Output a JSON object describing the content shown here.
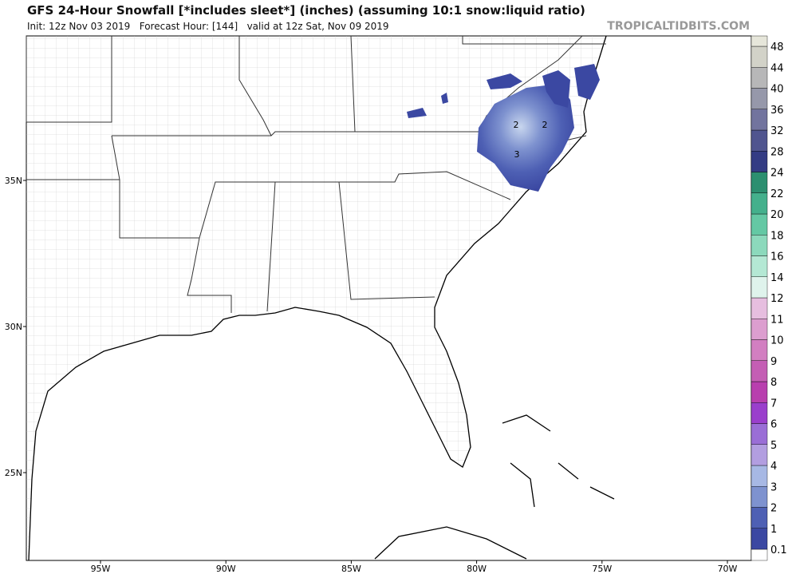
{
  "header": {
    "title": "GFS 24-Hour Snowfall [*includes sleet*] (inches) (assuming 10:1 snow:liquid ratio)",
    "subtitle": "Init: 12z Nov 03 2019   Forecast Hour: [144]   valid at 12z Sat, Nov 09 2019",
    "source": "TROPICALTIDBITS.COM"
  },
  "map": {
    "lat_labels": [
      "35N",
      "30N",
      "25N"
    ],
    "lon_labels": [
      "95W",
      "90W",
      "85W",
      "80W",
      "75W",
      "70W"
    ],
    "contour_labels": [
      "2",
      "2",
      "3"
    ]
  },
  "colorbar": {
    "labels": [
      "0.1",
      "1",
      "2",
      "3",
      "4",
      "5",
      "6",
      "7",
      "8",
      "9",
      "10",
      "11",
      "12",
      "14",
      "16",
      "18",
      "20",
      "22",
      "24",
      "28",
      "32",
      "36",
      "40",
      "44",
      "48"
    ],
    "colors": [
      "#ffffff",
      "#3b48a2",
      "#4e60b4",
      "#7e92cf",
      "#a7b8e4",
      "#b29ee0",
      "#9a6ed6",
      "#9a3fcc",
      "#b83fae",
      "#c45eb4",
      "#d27fc1",
      "#dc9ecf",
      "#e6bedf",
      "#dff3ec",
      "#b4e8d4",
      "#8cd9bc",
      "#64c8a4",
      "#44b08c",
      "#2c8f70",
      "#343c84",
      "#50558f",
      "#72749e",
      "#9698aa",
      "#b7b7b8",
      "#d2d2c8",
      "#e6e6da"
    ]
  }
}
